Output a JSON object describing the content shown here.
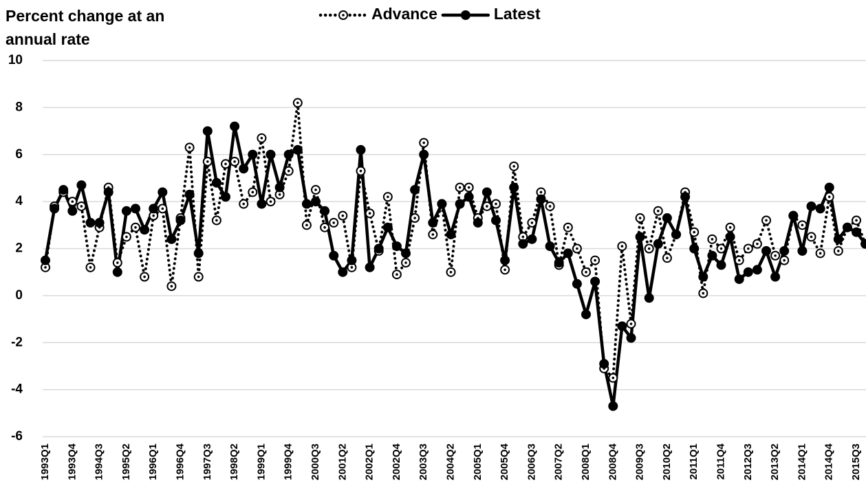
{
  "chart_data": {
    "type": "line",
    "ylabel": "Percent change at an annual rate",
    "categories": [
      "1993Q1",
      null,
      null,
      "1993Q4",
      null,
      null,
      "1994Q3",
      null,
      null,
      "1995Q2",
      null,
      null,
      "1996Q1",
      null,
      null,
      "1996Q4",
      null,
      null,
      "1997Q3",
      null,
      null,
      "1998Q2",
      null,
      null,
      "1999Q1",
      null,
      null,
      "1999Q4",
      null,
      null,
      "2000Q3",
      null,
      null,
      "2001Q2",
      null,
      null,
      "2002Q1",
      null,
      null,
      "2002Q4",
      null,
      null,
      "2003Q3",
      null,
      null,
      "2004Q2",
      null,
      null,
      "2005Q1",
      null,
      null,
      "2005Q4",
      null,
      null,
      "2006Q3",
      null,
      null,
      "2007Q2",
      null,
      null,
      "2008Q1",
      null,
      null,
      "2008Q4",
      null,
      null,
      "2009Q3",
      null,
      null,
      "2010Q2",
      null,
      null,
      "2011Q1",
      null,
      null,
      "2011Q4",
      null,
      null,
      "2012Q3",
      null,
      null,
      "2013Q2",
      null,
      null,
      "2014Q1",
      null,
      null,
      "2014Q4",
      null,
      null,
      "2015Q3",
      null
    ],
    "series": [
      {
        "name": "Advance",
        "color": "#000000",
        "style": "dotted",
        "values": [
          1.2,
          3.8,
          4.4,
          4.0,
          3.8,
          1.2,
          2.9,
          4.6,
          1.4,
          2.5,
          2.9,
          0.8,
          3.4,
          3.7,
          0.4,
          3.3,
          6.3,
          0.8,
          5.7,
          3.2,
          5.6,
          5.7,
          3.9,
          4.4,
          6.7,
          4.0,
          4.3,
          5.3,
          8.2,
          3.0,
          4.5,
          2.9,
          3.1,
          3.4,
          1.2,
          5.3,
          3.5,
          1.9,
          4.2,
          0.9,
          1.4,
          3.3,
          6.5,
          2.6,
          3.9,
          1.0,
          4.6,
          4.6,
          3.3,
          3.8,
          3.9,
          1.1,
          5.5,
          2.5,
          3.1,
          4.4,
          3.8,
          1.3,
          2.9,
          2.0,
          1.0,
          1.5,
          -3.1,
          -3.5,
          2.1,
          -1.2,
          3.3,
          2.0,
          3.6,
          1.6,
          2.6,
          4.4,
          2.7,
          0.1,
          2.4,
          2.0,
          2.9,
          1.5,
          2.0,
          2.2,
          3.2,
          1.7,
          1.5,
          3.4,
          3.0,
          2.5,
          1.8,
          4.2,
          1.9,
          2.9,
          3.2,
          2.2
        ]
      },
      {
        "name": "Latest",
        "color": "#000000",
        "style": "solid",
        "values": [
          1.5,
          3.7,
          4.5,
          3.6,
          4.7,
          3.1,
          3.1,
          4.4,
          1.0,
          3.6,
          3.7,
          2.8,
          3.7,
          4.4,
          2.4,
          3.2,
          4.3,
          1.8,
          7.0,
          4.8,
          4.2,
          7.2,
          5.4,
          6.0,
          3.9,
          6.0,
          4.6,
          6.0,
          6.2,
          3.9,
          4.0,
          3.6,
          1.7,
          1.0,
          1.5,
          6.2,
          1.2,
          2.0,
          2.9,
          2.1,
          1.8,
          4.5,
          6.0,
          3.1,
          3.9,
          2.6,
          3.9,
          4.2,
          3.1,
          4.4,
          3.2,
          1.5,
          4.6,
          2.2,
          2.4,
          4.1,
          2.1,
          1.4,
          1.8,
          0.5,
          -0.8,
          0.6,
          -2.9,
          -4.7,
          -1.3,
          -1.8,
          2.5,
          -0.1,
          2.2,
          3.3,
          2.6,
          4.2,
          2.0,
          0.8,
          1.7,
          1.3,
          2.5,
          0.7,
          1.0,
          1.1,
          1.9,
          0.8,
          1.9,
          3.4,
          1.9,
          3.8,
          3.7,
          4.6,
          2.4,
          2.9,
          2.7,
          2.2
        ]
      }
    ],
    "ylim": [
      -6,
      10
    ],
    "yticks": [
      -6,
      -4,
      -2,
      0,
      2,
      4,
      6,
      8,
      10
    ],
    "grid": true,
    "legend": "top"
  }
}
